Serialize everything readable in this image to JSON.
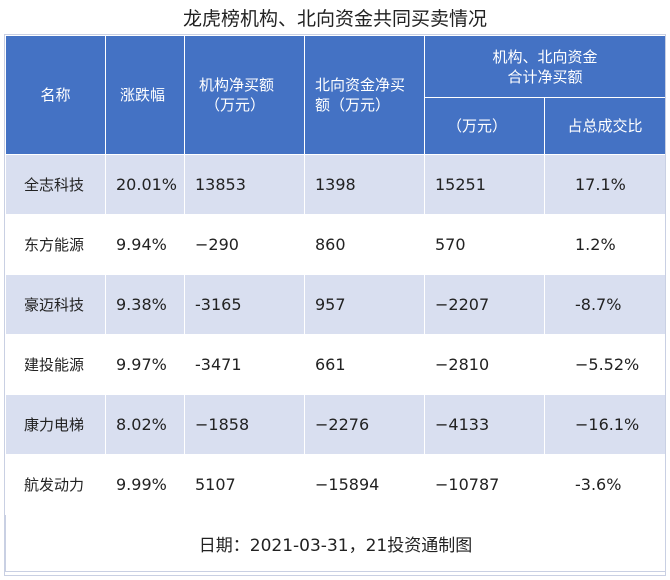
{
  "title": "龙虎榜机构、北向资金共同买卖情况",
  "headers": {
    "name": "名称",
    "change": "涨跌幅",
    "inst_line1": "机构净买额",
    "inst_line2": "（万元）",
    "north_line1": "北向资金净买",
    "north_line2": "额（万元）",
    "combined_line1": "机构、北向资金",
    "combined_line2": "合计净买额",
    "combined_unit": "（万元）",
    "combined_ratio": "占总成交比"
  },
  "rows": [
    {
      "name": "全志科技",
      "change": "20.01%",
      "inst": "13853",
      "north": "1398",
      "total": "15251",
      "ratio": "17.1%"
    },
    {
      "name": "东方能源",
      "change": "9.94%",
      "inst": "−290",
      "north": "860",
      "total": "570",
      "ratio": "1.2%"
    },
    {
      "name": "豪迈科技",
      "change": "9.38%",
      "inst": "-3165",
      "north": "957",
      "total": "−2207",
      "ratio": "-8.7%"
    },
    {
      "name": "建投能源",
      "change": "9.97%",
      "inst": "-3471",
      "north": "661",
      "total": "−2810",
      "ratio": "−5.52%"
    },
    {
      "name": "康力电梯",
      "change": "8.02%",
      "inst": "−1858",
      "north": "−2276",
      "total": "−4133",
      "ratio": "−16.1%"
    },
    {
      "name": "航发动力",
      "change": "9.99%",
      "inst": "5107",
      "north": "−15894",
      "total": "−10787",
      "ratio": "-3.6%"
    }
  ],
  "footer": "日期：2021-03-31，21投资通制图",
  "colors": {
    "header_bg": "#4472c4",
    "band": "#d9dff0"
  }
}
